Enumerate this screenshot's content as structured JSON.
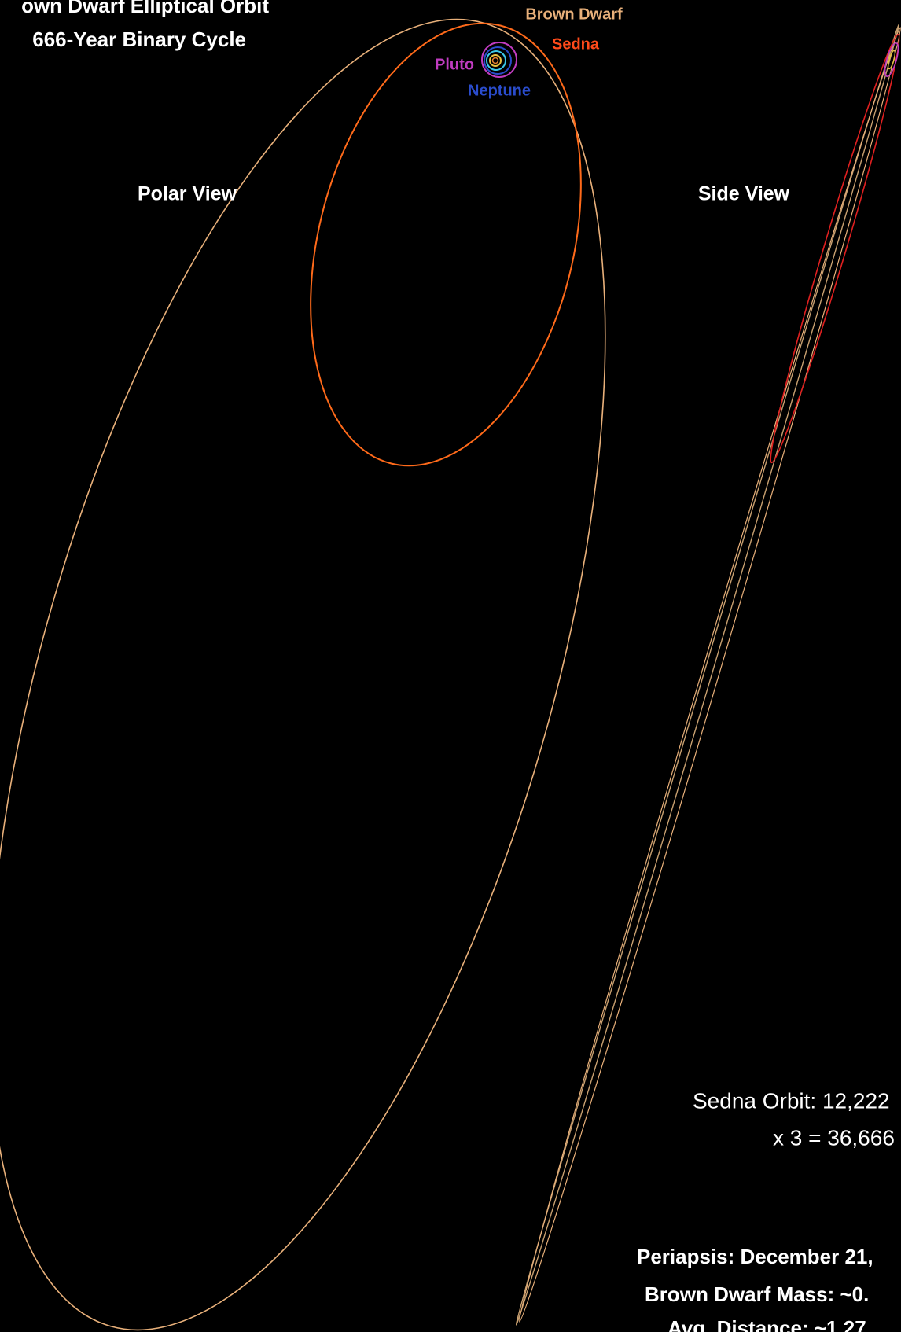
{
  "header": {
    "title_line1": "own Dwarf Elliptical Orbit",
    "title_line2": "666-Year Binary Cycle"
  },
  "labels": {
    "brown_dwarf": "Brown Dwarf",
    "sedna": "Sedna",
    "pluto": "Pluto",
    "neptune": "Neptune"
  },
  "views": {
    "polar": "Polar View",
    "side": "Side View"
  },
  "notes": {
    "sedna_orbit": "Sedna Orbit: 12,222",
    "times_three": "x 3 = 36,666",
    "periapsis": "Periapsis: December 21,",
    "mass": "Brown Dwarf Mass: ~0.",
    "distance": "Avg. Distance: ~1,27"
  }
}
